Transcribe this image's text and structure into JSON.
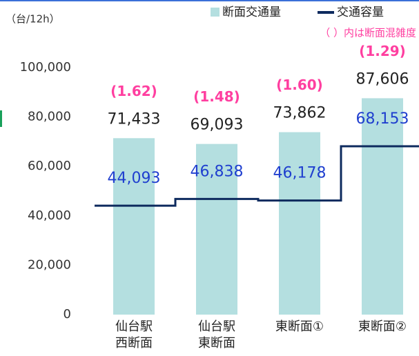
{
  "chart_data": {
    "type": "bar",
    "unit_label": "（台/12h）",
    "annotation": "（ ）内は断面混雑度",
    "categories": [
      [
        "仙台駅",
        "西断面"
      ],
      [
        "仙台駅",
        "東断面"
      ],
      [
        "東断面①"
      ],
      [
        "東断面②"
      ]
    ],
    "series": [
      {
        "name": "断面交通量",
        "color": "#b4dfe0",
        "type": "bar",
        "values": [
          71433,
          69093,
          73862,
          87606
        ],
        "value_labels": [
          "71,433",
          "69,093",
          "73,862",
          "87,606"
        ]
      },
      {
        "name": "交通容量",
        "color": "#0d2a5e",
        "type": "step",
        "label_color": "#1f3fcf",
        "values": [
          44093,
          46838,
          46178,
          68153
        ],
        "value_labels": [
          "44,093",
          "46,838",
          "46,178",
          "68,153"
        ]
      }
    ],
    "congestion": [
      1.62,
      1.48,
      1.6,
      1.29
    ],
    "congestion_labels": [
      "(1.62)",
      "(1.48)",
      "(1.60)",
      "(1.29)"
    ],
    "congestion_color": "#ff3fa0",
    "ylim": [
      0,
      100000
    ],
    "yticks": [
      0,
      {
        "value": 20000,
        "label": "20,000"
      },
      {
        "value": 40000,
        "label": "40,000"
      },
      {
        "value": 60000,
        "label": "60,000"
      },
      {
        "value": 80000,
        "label": "80,000"
      },
      {
        "value": 100000,
        "label": "100,000"
      }
    ]
  }
}
